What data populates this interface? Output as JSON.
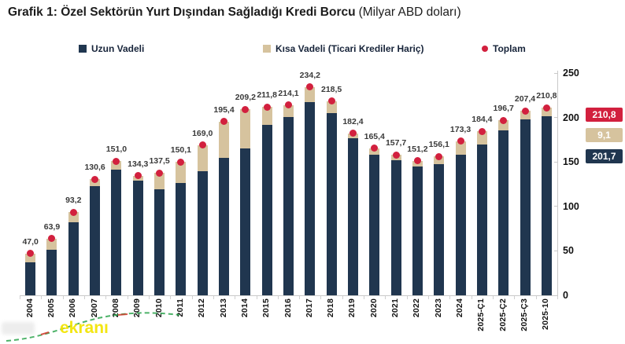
{
  "title": {
    "main": "Grafik 1: Özel Sektörün Yurt Dışından Sağladığı Kredi Borcu",
    "unit": "(Milyar ABD doları)"
  },
  "legend": {
    "items": [
      {
        "label": "Uzun Vadeli",
        "marker": "navy-square",
        "color": "#20364f"
      },
      {
        "label": "Kısa Vadeli (Ticari Krediler Hariç)",
        "marker": "beige-square",
        "color": "#d6c39e"
      },
      {
        "label": "Toplam",
        "marker": "red-dot",
        "color": "#d2203e"
      }
    ]
  },
  "chart_data": {
    "type": "bar",
    "stacked": true,
    "title": "Özel Sektörün Yurt Dışından Sağladığı Kredi Borcu (Milyar ABD doları)",
    "categories": [
      "2004",
      "2005",
      "2006",
      "2007",
      "2008",
      "2009",
      "2010",
      "2011",
      "2012",
      "2013",
      "2014",
      "2015",
      "2016",
      "2017",
      "2018",
      "2019",
      "2020",
      "2021",
      "2022",
      "2023",
      "2024",
      "2025-Ç1",
      "2025-Ç2",
      "2025-Ç3",
      "2025-10"
    ],
    "series": [
      {
        "name": "Uzun Vadeli",
        "color": "#20364f",
        "values": [
          37.5,
          50.9,
          82.0,
          122.4,
          141.6,
          128.6,
          119.0,
          126.3,
          139.4,
          154.8,
          165.5,
          191.6,
          200.5,
          217.0,
          205.0,
          176.5,
          157.7,
          151.8,
          144.8,
          147.4,
          158.3,
          169.8,
          185.7,
          197.5,
          201.7
        ]
      },
      {
        "name": "Kısa Vadeli (Ticari Krediler Hariç)",
        "color": "#d6c39e",
        "values": [
          9.5,
          13.0,
          11.2,
          8.2,
          9.4,
          5.7,
          18.5,
          23.8,
          29.6,
          40.6,
          43.7,
          20.2,
          13.6,
          17.2,
          13.5,
          5.9,
          7.7,
          5.9,
          6.4,
          8.7,
          15.0,
          14.6,
          11.0,
          9.9,
          9.1
        ]
      }
    ],
    "totals": {
      "name": "Toplam",
      "marker": "red-dot",
      "color": "#d2203e",
      "values": [
        47.0,
        63.9,
        93.2,
        130.6,
        151.0,
        134.3,
        137.5,
        150.1,
        169.0,
        195.4,
        209.2,
        211.8,
        214.1,
        234.2,
        218.5,
        182.4,
        165.4,
        157.7,
        151.2,
        156.1,
        173.3,
        184.4,
        196.7,
        207.4,
        210.8
      ]
    },
    "total_labels": [
      "47,0",
      "63,9",
      "93,2",
      "130,6",
      "151,0",
      "134,3",
      "137,5",
      "150,1",
      "169,0",
      "195,4",
      "209,2",
      "211,8",
      "214,1",
      "234,2",
      "218,5",
      "182,4",
      "165,4",
      "157,7",
      "151,2",
      "156,1",
      "173,3",
      "184,4",
      "196,7",
      "207,4",
      "210,8"
    ],
    "ylim": [
      0,
      250
    ],
    "yticks": [
      0,
      50,
      100,
      150,
      200,
      250
    ],
    "legend_position": "top",
    "grid": false
  },
  "callouts": {
    "items": [
      {
        "value": "210,8",
        "meaning": "Toplam",
        "bg": "#d2203e"
      },
      {
        "value": "9,1",
        "meaning": "Kısa Vadeli",
        "bg": "#d6c39e"
      },
      {
        "value": "201,7",
        "meaning": "Uzun Vadeli",
        "bg": "#20364f"
      }
    ]
  },
  "watermark": {
    "text": "ekranı",
    "color": "#f2e400"
  }
}
